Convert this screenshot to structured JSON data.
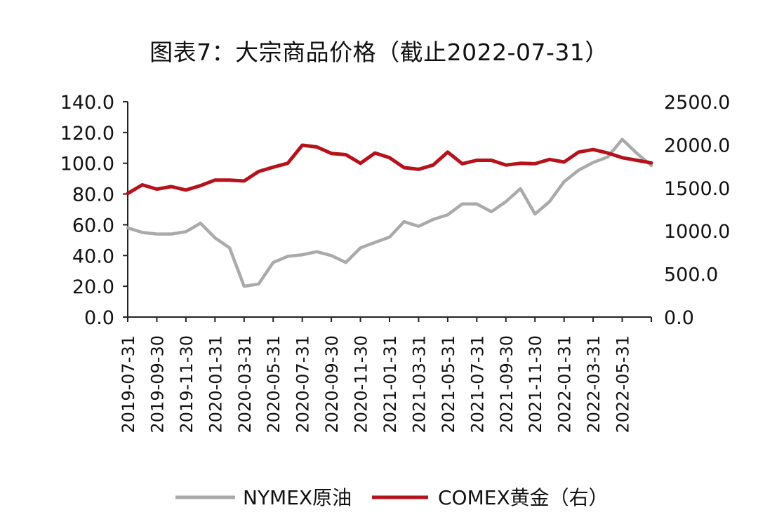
{
  "title": "图表7：大宗商品价格（截止2022-07-31）",
  "chart_data": {
    "type": "line",
    "title": "图表7：大宗商品价格（截止2022-07-31）",
    "x": [
      "2019-07-31",
      "2019-08-31",
      "2019-09-30",
      "2019-10-31",
      "2019-11-30",
      "2019-12-31",
      "2020-01-31",
      "2020-02-29",
      "2020-03-31",
      "2020-04-30",
      "2020-05-31",
      "2020-06-30",
      "2020-07-31",
      "2020-08-31",
      "2020-09-30",
      "2020-10-31",
      "2020-11-30",
      "2020-12-31",
      "2021-01-31",
      "2021-02-28",
      "2021-03-31",
      "2021-04-30",
      "2021-05-31",
      "2021-06-30",
      "2021-07-31",
      "2021-08-31",
      "2021-09-30",
      "2021-10-31",
      "2021-11-30",
      "2021-12-31",
      "2022-01-31",
      "2022-02-28",
      "2022-03-31",
      "2022-04-30",
      "2022-05-31",
      "2022-06-30",
      "2022-07-31"
    ],
    "x_tick_labels": [
      "2019-07-31",
      "2019-09-30",
      "2019-11-30",
      "2020-01-31",
      "2020-03-31",
      "2020-05-31",
      "2020-07-31",
      "2020-09-30",
      "2020-11-30",
      "2021-01-31",
      "2021-03-31",
      "2021-05-31",
      "2021-07-31",
      "2021-09-30",
      "2021-11-30",
      "2022-01-31",
      "2022-03-31",
      "2022-05-31"
    ],
    "y_left": {
      "range": [
        0,
        140
      ],
      "ticks": [
        "0.0",
        "20.0",
        "40.0",
        "60.0",
        "80.0",
        "100.0",
        "120.0",
        "140.0"
      ]
    },
    "y_right": {
      "range": [
        0,
        2500
      ],
      "ticks": [
        "0.0",
        "500.0",
        "1000.0",
        "1500.0",
        "2000.0",
        "2500.0"
      ]
    },
    "series": [
      {
        "name": "NYMEX原油",
        "axis": "left",
        "color": "#aaaaaa",
        "values": [
          58.0,
          55.0,
          54.0,
          54.0,
          55.5,
          61.0,
          51.5,
          45.0,
          20.0,
          21.5,
          35.5,
          39.5,
          40.5,
          42.5,
          40.0,
          35.5,
          45.0,
          48.5,
          52.0,
          62.0,
          59.0,
          63.5,
          66.5,
          73.5,
          73.5,
          68.5,
          75.0,
          83.5,
          67.0,
          75.0,
          88.0,
          95.5,
          100.5,
          104.0,
          115.5,
          106.5,
          98.5
        ]
      },
      {
        "name": "COMEX黄金（右）",
        "axis": "right",
        "color": "#b5121b",
        "values": [
          1435,
          1535,
          1485,
          1515,
          1475,
          1525,
          1590,
          1590,
          1580,
          1690,
          1740,
          1785,
          1995,
          1975,
          1900,
          1885,
          1785,
          1905,
          1850,
          1735,
          1715,
          1765,
          1915,
          1780,
          1820,
          1820,
          1765,
          1785,
          1780,
          1830,
          1800,
          1915,
          1945,
          1905,
          1850,
          1820,
          1790
        ]
      }
    ],
    "legend": {
      "placement": "bottom-center"
    }
  }
}
